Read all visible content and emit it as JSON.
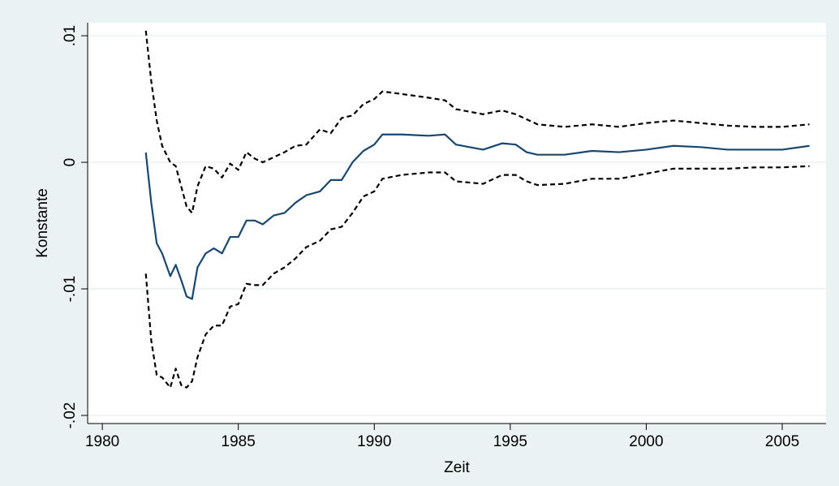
{
  "chart_data": {
    "type": "line",
    "xlabel": "Zeit",
    "ylabel": "Konstante",
    "x": [
      1981.6,
      1981.8,
      1982.0,
      1982.2,
      1982.5,
      1982.7,
      1982.9,
      1983.1,
      1983.3,
      1983.5,
      1983.8,
      1984.1,
      1984.4,
      1984.7,
      1985.0,
      1985.3,
      1985.6,
      1985.9,
      1986.3,
      1986.7,
      1987.1,
      1987.5,
      1988.0,
      1988.4,
      1988.8,
      1989.2,
      1989.6,
      1990.0,
      1990.3,
      1991,
      1992,
      1992.6,
      1993,
      1994,
      1994.7,
      1995.2,
      1995.6,
      1996,
      1997,
      1998,
      1999,
      2000,
      2001,
      2002,
      2003,
      2004,
      2005,
      2006
    ],
    "series": [
      {
        "color": "#1a476f",
        "dashed": false,
        "values": [
          0.00077,
          -0.0032,
          -0.0064,
          -0.0072,
          -0.009,
          -0.0081,
          -0.0093,
          -0.0106,
          -0.0108,
          -0.0083,
          -0.0072,
          -0.0068,
          -0.0072,
          -0.0059,
          -0.0059,
          -0.0046,
          -0.0046,
          -0.0049,
          -0.0042,
          -0.004,
          -0.0032,
          -0.0026,
          -0.0023,
          -0.0014,
          -0.0014,
          0,
          0.0009,
          0.0014,
          0.0022,
          0.0022,
          0.0021,
          0.0022,
          0.0014,
          0.001,
          0.0015,
          0.0014,
          0.0008,
          0.0006,
          0.0006,
          0.0009,
          0.0008,
          0.001,
          0.0013,
          0.0012,
          0.001,
          0.001,
          0.001,
          0.0013
        ]
      },
      {
        "color": "#000000",
        "dashed": true,
        "values": [
          0.0104,
          0.0064,
          0.0033,
          0.0013,
          0,
          -0.0003,
          -0.0019,
          -0.0035,
          -0.004,
          -0.0019,
          -0.0003,
          -0.0005,
          -0.0012,
          -0.0001,
          -0.0006,
          0.0008,
          0.0003,
          0,
          0.0004,
          0.0008,
          0.0013,
          0.0014,
          0.0026,
          0.0023,
          0.0035,
          0.0037,
          0.0046,
          0.005,
          0.0056,
          0.0054,
          0.0051,
          0.0049,
          0.0042,
          0.0038,
          0.0041,
          0.0038,
          0.0034,
          0.003,
          0.0028,
          0.003,
          0.0028,
          0.0031,
          0.0033,
          0.0031,
          0.0029,
          0.0028,
          0.0028,
          0.003
        ]
      },
      {
        "color": "#000000",
        "dashed": true,
        "values": [
          -0.0088,
          -0.0141,
          -0.0168,
          -0.017,
          -0.0178,
          -0.0163,
          -0.0176,
          -0.0178,
          -0.0173,
          -0.0154,
          -0.0136,
          -0.0129,
          -0.0129,
          -0.0114,
          -0.0112,
          -0.0096,
          -0.0097,
          -0.0097,
          -0.0088,
          -0.0083,
          -0.0076,
          -0.0067,
          -0.0062,
          -0.0053,
          -0.0051,
          -0.004,
          -0.0027,
          -0.0023,
          -0.0013,
          -0.001,
          -0.0008,
          -0.0008,
          -0.0015,
          -0.0017,
          -0.001,
          -0.001,
          -0.0015,
          -0.0018,
          -0.0017,
          -0.0013,
          -0.0013,
          -0.0009,
          -0.0005,
          -0.0005,
          -0.0005,
          -0.0004,
          -0.0004,
          -0.0003
        ]
      }
    ],
    "xlim": [
      1979.46,
      2006.61
    ],
    "ylim": [
      -0.02064,
      0.01103
    ],
    "xticks": [
      1980,
      1985,
      1990,
      1995,
      2000,
      2005
    ],
    "yticks": [
      {
        "value": 0.01,
        "label": ".01"
      },
      0,
      {
        "value": -0.01,
        "label": "-.01"
      },
      {
        "value": -0.02,
        "label": "-.02"
      }
    ],
    "grid": true
  }
}
